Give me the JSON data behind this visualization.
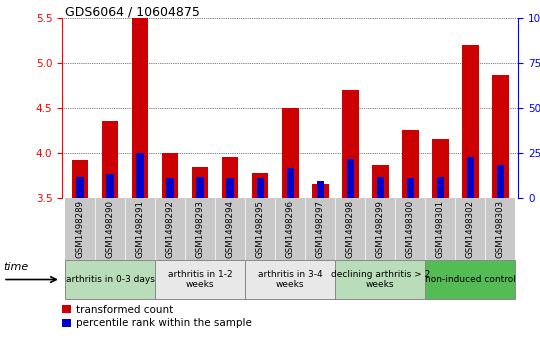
{
  "title": "GDS6064 / 10604875",
  "samples": [
    "GSM1498289",
    "GSM1498290",
    "GSM1498291",
    "GSM1498292",
    "GSM1498293",
    "GSM1498294",
    "GSM1498295",
    "GSM1498296",
    "GSM1498297",
    "GSM1498298",
    "GSM1498299",
    "GSM1498300",
    "GSM1498301",
    "GSM1498302",
    "GSM1498303"
  ],
  "red_values": [
    3.92,
    4.36,
    5.5,
    4.0,
    3.84,
    3.95,
    3.78,
    4.5,
    3.65,
    4.7,
    3.86,
    4.25,
    4.15,
    5.2,
    4.87
  ],
  "blue_values": [
    3.73,
    3.77,
    4.0,
    3.72,
    3.73,
    3.72,
    3.72,
    3.83,
    3.69,
    3.93,
    3.73,
    3.72,
    3.73,
    3.95,
    3.87
  ],
  "ylim_left": [
    3.5,
    5.5
  ],
  "ylim_right": [
    0,
    100
  ],
  "yticks_left": [
    3.5,
    4.0,
    4.5,
    5.0,
    5.5
  ],
  "yticks_right": [
    0,
    25,
    50,
    75,
    100
  ],
  "groups": [
    {
      "label": "arthritis in 0-3 days",
      "start": 0,
      "end": 3,
      "color": "#b8ddb8"
    },
    {
      "label": "arthritis in 1-2\nweeks",
      "start": 3,
      "end": 6,
      "color": "#e8e8e8"
    },
    {
      "label": "arthritis in 3-4\nweeks",
      "start": 6,
      "end": 9,
      "color": "#e8e8e8"
    },
    {
      "label": "declining arthritis > 2\nweeks",
      "start": 9,
      "end": 12,
      "color": "#b8ddb8"
    },
    {
      "label": "non-induced control",
      "start": 12,
      "end": 15,
      "color": "#55bb55"
    }
  ],
  "bar_width": 0.55,
  "red_color": "#cc0000",
  "blue_color": "#0000cc",
  "tick_bg_color": "#c8c8c8",
  "base": 3.5
}
